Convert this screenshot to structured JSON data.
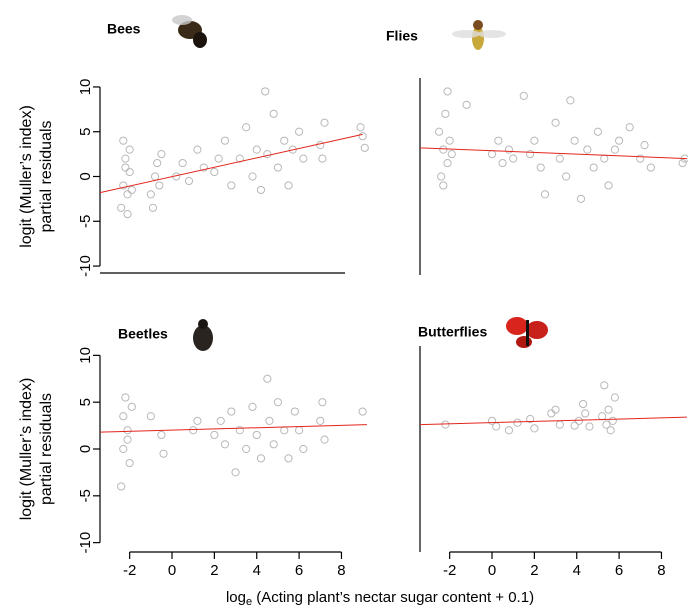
{
  "chart_data": [
    {
      "type": "scatter",
      "title": "Bees",
      "color": "#b8b8b8",
      "x": [
        -2.4,
        -2.3,
        -2.2,
        -2.1,
        -2.0,
        -2.3,
        -2.1,
        -2.2,
        -1.9,
        -2.0,
        -1.0,
        -0.8,
        -0.7,
        -0.9,
        -0.6,
        -0.5,
        0.2,
        0.5,
        0.8,
        1.2,
        1.5,
        2.0,
        2.2,
        2.5,
        2.8,
        3.2,
        3.5,
        3.8,
        4.0,
        4.2,
        4.4,
        4.5,
        4.8,
        5.0,
        5.3,
        5.5,
        5.7,
        6.0,
        6.2,
        7.0,
        7.2,
        7.1,
        9.0,
        9.1,
        8.9
      ],
      "values": [
        -3.5,
        -1,
        2,
        -4.2,
        0.5,
        4,
        -2,
        1,
        -1.5,
        3,
        -2,
        0,
        1.5,
        -3.5,
        -1,
        2.5,
        0,
        1.5,
        -0.5,
        3,
        1,
        0.5,
        2,
        4,
        -1,
        2,
        5.5,
        0,
        3,
        -1.5,
        9.5,
        2.5,
        7,
        1,
        4,
        -1,
        3,
        5,
        2,
        3.5,
        6,
        2,
        4.5,
        3.2,
        5.5
      ],
      "fit": {
        "x": [
          -3.4,
          9.0
        ],
        "values": [
          -1.8,
          4.7
        ],
        "color": "#e3241b"
      },
      "xlim": [
        -3.4,
        9.3
      ],
      "ylim": [
        -11,
        11
      ],
      "yticks": [
        -10,
        -5,
        0,
        5,
        10
      ],
      "ylabel": [
        "logit (Muller’s index)",
        "partial residuals"
      ]
    },
    {
      "type": "scatter",
      "title": "Flies",
      "color": "#b8b8b8",
      "x": [
        -2.5,
        -2.4,
        -2.3,
        -2.2,
        -2.1,
        -2.0,
        -2.3,
        -2.1,
        -1.9,
        -1.2,
        0,
        0.3,
        0.5,
        0.8,
        1.0,
        1.5,
        1.8,
        2.0,
        2.3,
        2.5,
        3.0,
        3.2,
        3.5,
        3.7,
        3.9,
        4.2,
        4.5,
        4.8,
        5.0,
        5.3,
        5.5,
        5.8,
        6.0,
        6.5,
        7.0,
        7.2,
        7.5,
        9.0,
        9.1
      ],
      "values": [
        5,
        0,
        3,
        7,
        1.5,
        4,
        -1,
        9.5,
        2.5,
        8,
        2.5,
        4,
        1.5,
        3,
        2,
        9,
        2.5,
        4,
        1,
        -2,
        6,
        2,
        0,
        8.5,
        4,
        -2.5,
        3,
        1,
        5,
        2,
        -1,
        3,
        4,
        5.5,
        2,
        3.5,
        1,
        1.5,
        2
      ],
      "fit": {
        "x": [
          -3.4,
          9.2
        ],
        "values": [
          3.2,
          2.0
        ],
        "color": "#e3241b"
      },
      "xlim": [
        -3.4,
        9.3
      ],
      "ylim": [
        -11,
        11
      ]
    },
    {
      "type": "scatter",
      "title": "Beetles",
      "color": "#b8b8b8",
      "x": [
        -2.4,
        -2.3,
        -2.2,
        -2.1,
        -2.0,
        -2.3,
        -2.1,
        -1.9,
        -1.0,
        -0.5,
        -0.4,
        1.0,
        1.2,
        2.0,
        2.3,
        2.5,
        2.8,
        3.0,
        3.2,
        3.5,
        3.8,
        4.0,
        4.2,
        4.5,
        4.6,
        4.8,
        5.0,
        5.3,
        5.5,
        5.8,
        6.0,
        6.2,
        7.0,
        7.1,
        7.2,
        9.0
      ],
      "values": [
        -4,
        0,
        5.5,
        2,
        -1.5,
        3.5,
        1,
        4.5,
        3.5,
        1.5,
        -0.5,
        2,
        3,
        1.5,
        3,
        0.5,
        4,
        -2.5,
        2,
        0,
        4.5,
        1.5,
        -1,
        7.5,
        3,
        0.5,
        5,
        2,
        -1,
        4,
        2,
        0,
        3,
        5,
        1,
        4
      ],
      "fit": {
        "x": [
          -3.4,
          9.2
        ],
        "values": [
          1.8,
          2.6
        ],
        "color": "#e3241b"
      },
      "xlim": [
        -3.4,
        9.3
      ],
      "ylim": [
        -11,
        11
      ],
      "yticks": [
        -10,
        -5,
        0,
        5,
        10
      ],
      "xticks": [
        -2,
        0,
        2,
        4,
        6,
        8
      ],
      "ylabel": [
        "logit (Muller’s index)",
        "partial residuals"
      ]
    },
    {
      "type": "scatter",
      "title": "Butterflies",
      "color": "#b8b8b8",
      "x": [
        -2.2,
        0,
        0.2,
        0.8,
        1.2,
        1.8,
        2.0,
        2.8,
        3.0,
        3.2,
        3.9,
        4.1,
        4.3,
        4.4,
        4.6,
        5.2,
        5.3,
        5.4,
        5.5,
        5.6,
        5.7,
        5.8
      ],
      "values": [
        2.6,
        3.0,
        2.4,
        2.0,
        2.8,
        3.2,
        2.2,
        3.8,
        4.2,
        2.6,
        2.5,
        3.0,
        4.8,
        3.8,
        2.4,
        3.5,
        6.8,
        2.6,
        4.2,
        2,
        3,
        5.5
      ],
      "fit": {
        "x": [
          -3.4,
          9.2
        ],
        "values": [
          2.6,
          3.4
        ],
        "color": "#e3241b"
      },
      "xlim": [
        -3.4,
        9.3
      ],
      "ylim": [
        -11,
        11
      ],
      "xticks": [
        -2,
        0,
        2,
        4,
        6,
        8
      ]
    }
  ],
  "xlabel": [
    "log",
    "e",
    " (Acting plant’s nectar sugar content + 0.1)"
  ]
}
